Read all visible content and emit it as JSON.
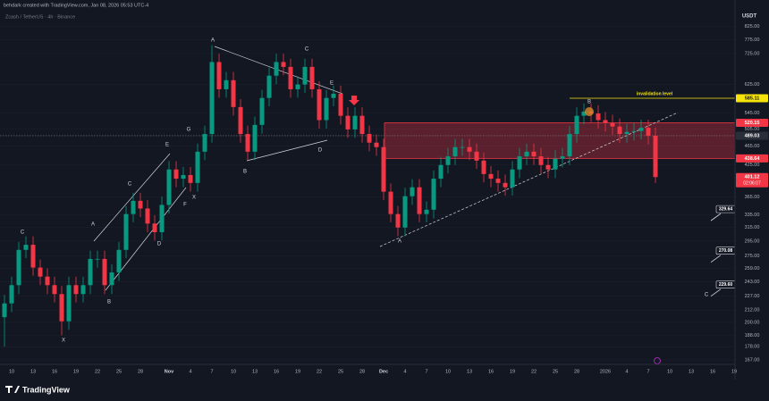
{
  "header": "behdark created with TradingView.com, Jan 08, 2026 05:53 UTC-4",
  "brand": "TradingView",
  "chart_data": {
    "type": "candlestick",
    "symbol": "Zcash / TetherUS · 4h · Binance",
    "currency": "USDT",
    "log_scale": true,
    "up_color": "#089981",
    "down_color": "#f23645",
    "categories": [
      null,
      "10",
      null,
      null,
      "13",
      null,
      null,
      "16",
      null,
      null,
      "19",
      null,
      null,
      "22",
      null,
      null,
      "25",
      null,
      null,
      "28",
      null,
      null,
      null,
      "Nov",
      null,
      null,
      "4",
      null,
      null,
      "7",
      null,
      null,
      "10",
      null,
      null,
      "13",
      null,
      null,
      "16",
      null,
      null,
      "19",
      null,
      null,
      "22",
      null,
      null,
      "25",
      null,
      null,
      "28",
      null,
      null,
      "Dec",
      null,
      null,
      "4",
      null,
      null,
      "7",
      null,
      null,
      "10",
      null,
      null,
      "13",
      null,
      null,
      "16",
      null,
      null,
      "19",
      null,
      null,
      "22",
      null,
      null,
      "25",
      null,
      null,
      "28",
      null,
      null,
      null,
      "2026",
      null,
      null,
      "4",
      null,
      null,
      "7",
      null,
      null,
      "10",
      null,
      null,
      "13",
      null,
      null,
      "16",
      null,
      null,
      "19"
    ],
    "open": [
      205,
      219,
      239,
      283,
      290,
      260,
      249,
      239,
      229,
      201,
      239,
      229,
      239,
      271,
      271,
      239,
      254,
      283,
      336,
      358,
      345,
      321,
      308,
      351,
      416,
      398,
      405,
      390,
      453,
      493,
      696,
      611,
      638,
      561,
      493,
      453,
      515,
      586,
      652,
      696,
      680,
      611,
      625,
      680,
      611,
      527,
      586,
      598,
      538,
      504,
      538,
      493,
      473,
      463,
      374,
      336,
      315,
      366,
      382,
      336,
      343,
      398,
      425,
      443,
      463,
      463,
      453,
      434,
      407,
      398,
      390,
      382,
      416,
      443,
      453,
      443,
      425,
      416,
      438,
      443,
      493,
      538,
      549,
      544,
      527,
      520,
      511,
      493,
      498,
      500,
      508,
      489.03,
      null,
      null,
      null,
      null,
      null,
      null,
      null,
      null,
      null,
      null,
      null
    ],
    "high": [
      228,
      249,
      294,
      302,
      302,
      270,
      259,
      249,
      238,
      249,
      249,
      249,
      282,
      282,
      282,
      264,
      294,
      349,
      372,
      372,
      359,
      334,
      365,
      433,
      433,
      421,
      421,
      471,
      513,
      755,
      724,
      664,
      664,
      583,
      513,
      536,
      609,
      678,
      724,
      724,
      707,
      650,
      707,
      707,
      635,
      609,
      622,
      622,
      560,
      560,
      560,
      513,
      492,
      482,
      389,
      349,
      381,
      397,
      397,
      357,
      414,
      442,
      461,
      482,
      482,
      482,
      471,
      451,
      423,
      414,
      406,
      433,
      461,
      471,
      471,
      461,
      442,
      456,
      461,
      513,
      560,
      571,
      571,
      566,
      548,
      541,
      531,
      518,
      520,
      528,
      528,
      509,
      null,
      null,
      null,
      null,
      null,
      null,
      null,
      null,
      null,
      null,
      null
    ],
    "low": [
      178,
      210,
      229,
      272,
      250,
      239,
      229,
      220,
      188,
      193,
      220,
      220,
      229,
      260,
      229,
      229,
      244,
      272,
      323,
      331,
      308,
      296,
      296,
      337,
      382,
      382,
      374,
      374,
      435,
      473,
      587,
      587,
      539,
      473,
      435,
      435,
      494,
      563,
      626,
      653,
      587,
      587,
      600,
      587,
      506,
      506,
      563,
      516,
      484,
      484,
      473,
      454,
      444,
      359,
      323,
      302,
      302,
      351,
      323,
      323,
      329,
      382,
      408,
      425,
      444,
      435,
      417,
      391,
      382,
      374,
      367,
      367,
      399,
      425,
      425,
      408,
      399,
      399,
      420,
      425,
      473,
      516,
      522,
      506,
      499,
      491,
      473,
      473,
      478,
      480,
      469,
      390,
      null,
      null,
      null,
      null,
      null,
      null,
      null,
      null,
      null,
      null,
      null
    ],
    "close": [
      219,
      239,
      283,
      290,
      260,
      249,
      239,
      229,
      201,
      239,
      229,
      239,
      271,
      271,
      239,
      254,
      283,
      336,
      358,
      345,
      321,
      308,
      351,
      416,
      398,
      405,
      390,
      453,
      493,
      696,
      611,
      638,
      561,
      493,
      453,
      515,
      586,
      652,
      696,
      680,
      611,
      625,
      680,
      611,
      527,
      586,
      598,
      538,
      504,
      538,
      493,
      473,
      463,
      374,
      336,
      315,
      366,
      382,
      336,
      343,
      398,
      425,
      443,
      463,
      463,
      453,
      434,
      407,
      398,
      390,
      382,
      416,
      443,
      453,
      443,
      425,
      416,
      438,
      443,
      493,
      538,
      549,
      544,
      527,
      520,
      511,
      493,
      498,
      500,
      508,
      489.03,
      401.12,
      null,
      null,
      null,
      null,
      null,
      null,
      null,
      null,
      null,
      null,
      null
    ],
    "ylim": [
      163.5,
      890
    ],
    "yticks": [
      {
        "value": 825,
        "label": "825.00"
      },
      {
        "value": 775,
        "label": "775.00"
      },
      {
        "value": 725,
        "label": "725.00"
      },
      {
        "value": 625,
        "label": "625.00"
      },
      {
        "value": 545,
        "label": "545.00"
      },
      {
        "value": 505,
        "label": "505.00"
      },
      {
        "value": 465,
        "label": "465.00"
      },
      {
        "value": 425,
        "label": "425.00"
      },
      {
        "value": 365,
        "label": "365.00"
      },
      {
        "value": 335,
        "label": "335.00"
      },
      {
        "value": 315,
        "label": "315.00"
      },
      {
        "value": 295,
        "label": "295.00"
      },
      {
        "value": 275,
        "label": "275.00"
      },
      {
        "value": 259,
        "label": "259.00"
      },
      {
        "value": 243,
        "label": "243.00"
      },
      {
        "value": 227,
        "label": "227.00"
      },
      {
        "value": 212,
        "label": "212.00"
      },
      {
        "value": 200,
        "label": "200.00"
      },
      {
        "value": 188,
        "label": "188.00"
      },
      {
        "value": 178,
        "label": "178.00"
      },
      {
        "value": 167,
        "label": "167.00"
      }
    ],
    "grid": true,
    "zone": {
      "top": 520.15,
      "bottom": 438.64,
      "color": "#f23645"
    },
    "invalidation_level": {
      "value": 585.11,
      "label": "invalidation level",
      "color": "#f5e30a"
    },
    "price_labels": [
      {
        "value": 585.11,
        "color": "#f5e30a",
        "text_color": "#131722"
      },
      {
        "value": 520.15,
        "color": "#f23645",
        "text_color": "#ffffff"
      },
      {
        "value": 489.03,
        "color": "#2a2e39",
        "text_color": "#ffffff",
        "dotted_line": true
      },
      {
        "value": 438.64,
        "color": "#f23645",
        "text_color": "#ffffff"
      },
      {
        "value": 401.12,
        "color": "#f23645",
        "text_color": "#ffffff"
      }
    ],
    "countdown": "02:06:07",
    "targets": [
      329.64,
      270.08,
      {
        "value": 229.6,
        "label": "229.60"
      }
    ],
    "wave_labels": [
      "C",
      "A",
      "B",
      "X",
      "C",
      "D",
      "E",
      "F",
      "G",
      "X",
      "A",
      "B",
      "C",
      "D",
      "E",
      "A",
      "B",
      "C"
    ]
  }
}
